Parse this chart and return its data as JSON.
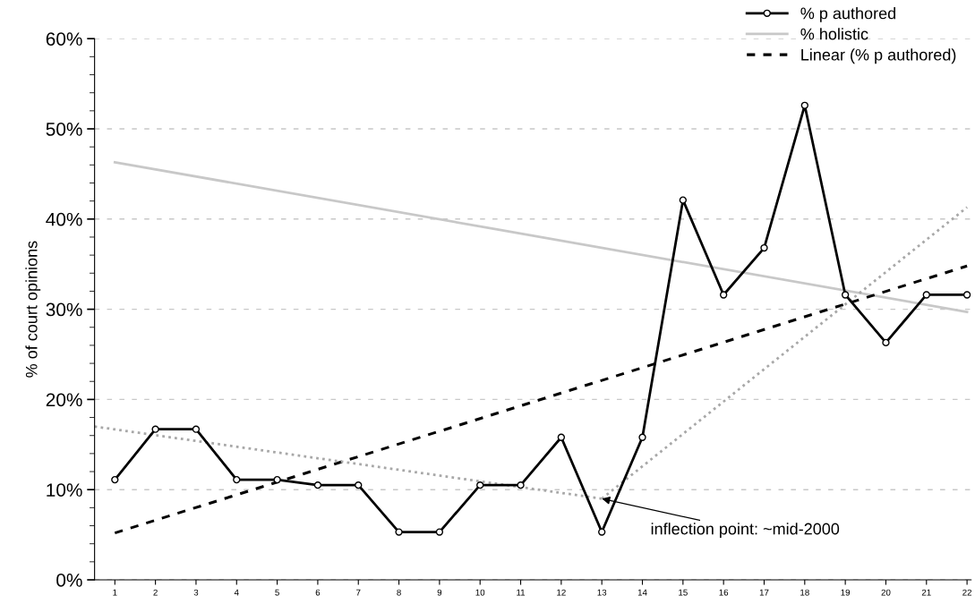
{
  "chart_data": {
    "type": "line",
    "ylabel": "% of court opinions",
    "xlim": [
      0.5,
      22.1
    ],
    "xticks": [
      1,
      2,
      3,
      4,
      5,
      6,
      7,
      8,
      9,
      10,
      11,
      12,
      13,
      14,
      15,
      16,
      17,
      18,
      19,
      20,
      21,
      22
    ],
    "ylim": [
      0,
      60
    ],
    "yticks": [
      {
        "value": 0,
        "label": "0%"
      },
      {
        "value": 2,
        "label": null
      },
      {
        "value": 4,
        "label": null
      },
      {
        "value": 6,
        "label": null
      },
      {
        "value": 8,
        "label": null
      },
      {
        "value": 10,
        "label": "10%"
      },
      {
        "value": 12,
        "label": null
      },
      {
        "value": 14,
        "label": null
      },
      {
        "value": 16,
        "label": null
      },
      {
        "value": 18,
        "label": null
      },
      {
        "value": 20,
        "label": "20%"
      },
      {
        "value": 22,
        "label": null
      },
      {
        "value": 24,
        "label": null
      },
      {
        "value": 26,
        "label": null
      },
      {
        "value": 28,
        "label": null
      },
      {
        "value": 30,
        "label": "30%"
      },
      {
        "value": 32,
        "label": null
      },
      {
        "value": 34,
        "label": null
      },
      {
        "value": 36,
        "label": null
      },
      {
        "value": 38,
        "label": null
      },
      {
        "value": 40,
        "label": "40%"
      },
      {
        "value": 42,
        "label": null
      },
      {
        "value": 44,
        "label": null
      },
      {
        "value": 46,
        "label": null
      },
      {
        "value": 48,
        "label": null
      },
      {
        "value": 50,
        "label": "50%"
      },
      {
        "value": 52,
        "label": null
      },
      {
        "value": 54,
        "label": null
      },
      {
        "value": 56,
        "label": null
      },
      {
        "value": 58,
        "label": null
      },
      {
        "value": 60,
        "label": "60%"
      }
    ],
    "grid": "y",
    "legend": "top right",
    "series": [
      {
        "name": "% p authored",
        "color": "#000000",
        "marker": "circle",
        "line_style": "solid",
        "x": [
          1,
          2,
          3,
          4,
          5,
          6,
          7,
          8,
          9,
          10,
          11,
          12,
          13,
          14,
          15,
          16,
          17,
          18,
          19,
          20,
          21,
          22
        ],
        "values": [
          11.1,
          16.7,
          16.7,
          11.1,
          11.1,
          10.5,
          10.5,
          5.3,
          5.3,
          10.5,
          10.5,
          15.8,
          5.3,
          15.8,
          42.1,
          31.6,
          36.8,
          52.6,
          31.6,
          26.3,
          31.6,
          31.6
        ]
      },
      {
        "name": "% holistic",
        "color": "#c8c8c8",
        "marker": "none",
        "line_style": "solid",
        "x": [
          1,
          22
        ],
        "values": [
          46.3,
          29.7
        ]
      },
      {
        "name": "Linear (% p authored)",
        "color": "#000000",
        "marker": "none",
        "line_style": "dashed",
        "x": [
          1,
          22
        ],
        "values": [
          5.2,
          34.8
        ]
      },
      {
        "color": "#a8a8a8",
        "marker": "none",
        "line_style": "dotted",
        "x": [
          0.5,
          13
        ],
        "values": [
          17.0,
          9.0
        ]
      },
      {
        "color": "#a8a8a8",
        "marker": "none",
        "line_style": "dotted",
        "x": [
          13,
          22
        ],
        "values": [
          9.0,
          41.3
        ]
      }
    ],
    "annotations": [
      {
        "text": "inflection point: ~mid-2000",
        "x": 13,
        "y": 9.0
      }
    ]
  }
}
